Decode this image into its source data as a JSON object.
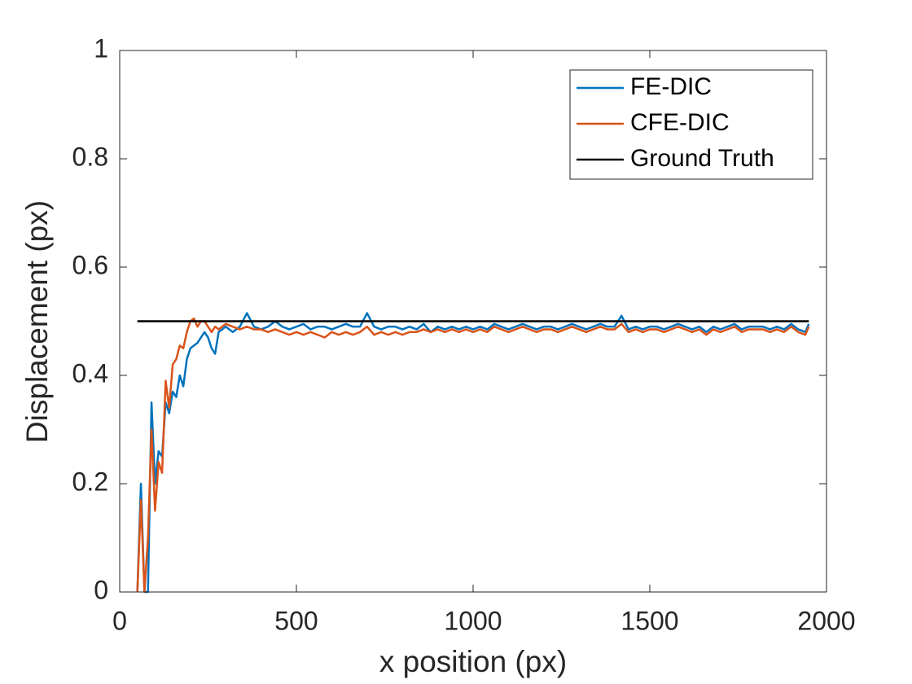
{
  "chart_data": {
    "type": "line",
    "xlabel": "x position (px)",
    "ylabel": "Displacement (px)",
    "xlim": [
      0,
      2000
    ],
    "xticks": [
      0,
      500,
      1000,
      1500,
      2000
    ],
    "ylim": [
      0,
      1
    ],
    "yticks": [
      0,
      0.2,
      0.4,
      0.6,
      0.8,
      1
    ],
    "legend": "upper right",
    "x": [
      50,
      60,
      70,
      80,
      90,
      100,
      110,
      120,
      130,
      140,
      150,
      160,
      170,
      180,
      190,
      200,
      210,
      220,
      230,
      240,
      250,
      260,
      270,
      280,
      290,
      300,
      320,
      340,
      360,
      380,
      400,
      420,
      440,
      460,
      480,
      500,
      520,
      540,
      560,
      580,
      600,
      620,
      640,
      660,
      680,
      700,
      720,
      740,
      760,
      780,
      800,
      820,
      840,
      860,
      880,
      900,
      920,
      940,
      960,
      980,
      1000,
      1020,
      1040,
      1060,
      1080,
      1100,
      1120,
      1140,
      1160,
      1180,
      1200,
      1220,
      1240,
      1260,
      1280,
      1300,
      1320,
      1340,
      1360,
      1380,
      1400,
      1420,
      1440,
      1460,
      1480,
      1500,
      1520,
      1540,
      1560,
      1580,
      1600,
      1620,
      1640,
      1660,
      1680,
      1700,
      1720,
      1740,
      1760,
      1780,
      1800,
      1820,
      1840,
      1860,
      1880,
      1900,
      1920,
      1940,
      1950
    ],
    "series": [
      {
        "name": "FE-DIC",
        "color": "#0072BD",
        "values": [
          0,
          0.2,
          0,
          0,
          0.35,
          0.2,
          0.26,
          0.25,
          0.35,
          0.33,
          0.37,
          0.36,
          0.4,
          0.38,
          0.43,
          0.45,
          0.455,
          0.46,
          0.47,
          0.48,
          0.47,
          0.45,
          0.44,
          0.48,
          0.485,
          0.49,
          0.48,
          0.49,
          0.515,
          0.49,
          0.485,
          0.49,
          0.5,
          0.49,
          0.485,
          0.49,
          0.495,
          0.485,
          0.49,
          0.49,
          0.485,
          0.49,
          0.495,
          0.49,
          0.49,
          0.515,
          0.49,
          0.485,
          0.49,
          0.49,
          0.485,
          0.49,
          0.485,
          0.495,
          0.48,
          0.49,
          0.485,
          0.49,
          0.485,
          0.49,
          0.485,
          0.49,
          0.485,
          0.495,
          0.49,
          0.485,
          0.49,
          0.495,
          0.49,
          0.485,
          0.49,
          0.49,
          0.485,
          0.49,
          0.495,
          0.49,
          0.485,
          0.49,
          0.495,
          0.49,
          0.49,
          0.51,
          0.485,
          0.49,
          0.485,
          0.49,
          0.49,
          0.485,
          0.49,
          0.495,
          0.49,
          0.485,
          0.49,
          0.48,
          0.49,
          0.485,
          0.49,
          0.495,
          0.485,
          0.49,
          0.49,
          0.49,
          0.485,
          0.49,
          0.485,
          0.495,
          0.485,
          0.48,
          0.495
        ]
      },
      {
        "name": "CFE-DIC",
        "color": "#D95319",
        "values": [
          0,
          0.17,
          0,
          0.1,
          0.3,
          0.15,
          0.24,
          0.22,
          0.39,
          0.34,
          0.42,
          0.43,
          0.455,
          0.45,
          0.48,
          0.5,
          0.505,
          0.49,
          0.5,
          0.5,
          0.49,
          0.48,
          0.49,
          0.485,
          0.49,
          0.495,
          0.49,
          0.485,
          0.49,
          0.485,
          0.485,
          0.48,
          0.485,
          0.48,
          0.475,
          0.48,
          0.475,
          0.48,
          0.475,
          0.47,
          0.48,
          0.475,
          0.48,
          0.475,
          0.48,
          0.49,
          0.475,
          0.48,
          0.475,
          0.48,
          0.475,
          0.48,
          0.48,
          0.485,
          0.48,
          0.485,
          0.48,
          0.485,
          0.48,
          0.485,
          0.48,
          0.485,
          0.48,
          0.49,
          0.485,
          0.48,
          0.485,
          0.49,
          0.485,
          0.48,
          0.485,
          0.485,
          0.48,
          0.485,
          0.49,
          0.485,
          0.48,
          0.485,
          0.49,
          0.485,
          0.485,
          0.495,
          0.48,
          0.485,
          0.48,
          0.485,
          0.485,
          0.48,
          0.485,
          0.49,
          0.485,
          0.48,
          0.485,
          0.475,
          0.485,
          0.48,
          0.485,
          0.49,
          0.48,
          0.485,
          0.485,
          0.485,
          0.48,
          0.485,
          0.48,
          0.49,
          0.48,
          0.475,
          0.49
        ]
      },
      {
        "name": "Ground Truth",
        "color": "#000000",
        "x": [
          50,
          1950
        ],
        "values": [
          0.5,
          0.5
        ]
      }
    ]
  }
}
